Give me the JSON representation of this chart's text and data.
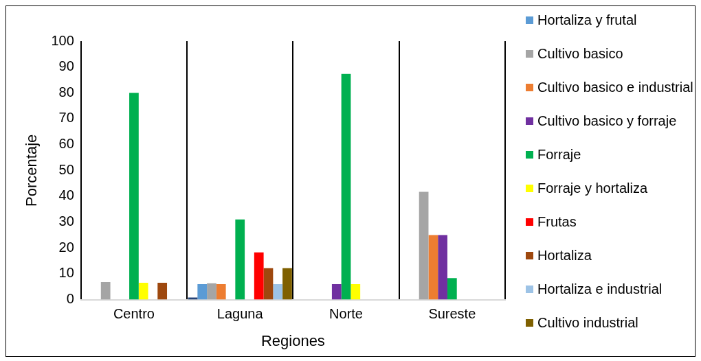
{
  "chart_data": {
    "type": "bar",
    "xlabel": "Regiones",
    "ylabel": "Porcentaje",
    "categories": [
      "Centro",
      "Laguna",
      "Norte",
      "Sureste"
    ],
    "series": [
      {
        "color": "#264478",
        "values": [
          0,
          0.8,
          0,
          0
        ]
      },
      {
        "name": " Hortaliza y frutal",
        "color": "#5b9bd5",
        "values": [
          0,
          6,
          0,
          0
        ]
      },
      {
        "name": "Cultivo basico",
        "color": "#a5a5a5",
        "values": [
          6.8,
          6.3,
          0,
          41.7
        ]
      },
      {
        "name": "Cultivo basico e industrial",
        "color": "#ed7d31",
        "values": [
          0,
          6,
          0,
          25
        ]
      },
      {
        "name": "Cultivo basico y forraje",
        "color": "#7030a0",
        "values": [
          0,
          0,
          6,
          25
        ]
      },
      {
        "name": "Forraje",
        "color": "#00b050",
        "values": [
          80,
          31,
          87.3,
          8.3
        ]
      },
      {
        "name": "Forraje y hortaliza",
        "color": "#ffff00",
        "values": [
          6.5,
          0,
          6,
          0
        ]
      },
      {
        "name": "Frutas",
        "color": "#ff0000",
        "values": [
          0,
          18.3,
          0,
          0
        ]
      },
      {
        "name": "Hortaliza",
        "color": "#9e480e",
        "values": [
          6.5,
          12.2,
          0,
          0
        ]
      },
      {
        "name": "Hortaliza e industrial",
        "color": "#9dc3e6",
        "values": [
          0,
          6,
          0,
          0
        ]
      },
      {
        "name": "Cultivo industrial",
        "color": "#7f6000",
        "values": [
          0,
          12.2,
          0,
          0
        ]
      }
    ],
    "ylim": [
      0,
      100
    ],
    "yticks": [
      0,
      10,
      20,
      30,
      40,
      50,
      60,
      70,
      80,
      90,
      100
    ],
    "grid": "x",
    "legend": "right"
  }
}
